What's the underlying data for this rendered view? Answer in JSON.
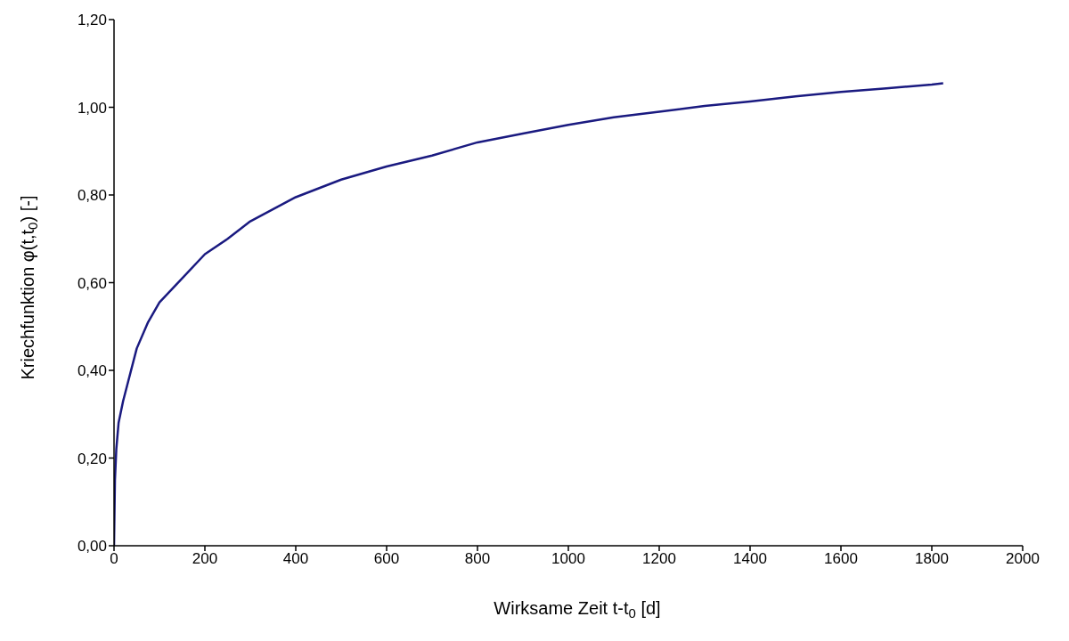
{
  "chart_data": {
    "type": "line",
    "xlabel": "Wirksame Zeit t-t$_{0}$ [d]",
    "ylabel": "Kriechfunktion φ(t,t$_{0}$) [-]",
    "x": [
      0,
      2,
      5,
      10,
      20,
      30,
      50,
      75,
      100,
      150,
      200,
      250,
      300,
      400,
      500,
      600,
      700,
      800,
      900,
      1000,
      1100,
      1200,
      1300,
      1400,
      1500,
      1600,
      1700,
      1800,
      1825
    ],
    "series": [
      {
        "color": "#1a1a80",
        "values": [
          0,
          0.15,
          0.22,
          0.28,
          0.33,
          0.37,
          0.45,
          0.51,
          0.555,
          0.61,
          0.665,
          0.7,
          0.74,
          0.795,
          0.835,
          0.865,
          0.89,
          0.92,
          0.94,
          0.96,
          0.977,
          0.99,
          1.003,
          1.013,
          1.025,
          1.035,
          1.043,
          1.052,
          1.055
        ]
      }
    ],
    "xlim": [
      0,
      2000
    ],
    "xticks": [
      0,
      200,
      400,
      600,
      800,
      1000,
      1200,
      1400,
      1600,
      1800,
      2000
    ],
    "ylim": [
      0,
      1.2
    ],
    "yticks": [
      {
        "value": 0,
        "label": "0,00"
      },
      {
        "value": 0.2,
        "label": "0,20"
      },
      {
        "value": 0.4,
        "label": "0,40"
      },
      {
        "value": 0.6,
        "label": "0,60"
      },
      {
        "value": 0.8,
        "label": "0,80"
      },
      {
        "value": 1,
        "label": "1,00"
      },
      {
        "value": 1.2,
        "label": "1,20"
      }
    ],
    "grid": false,
    "legend": false,
    "marker": "none",
    "line_style": "solid"
  }
}
